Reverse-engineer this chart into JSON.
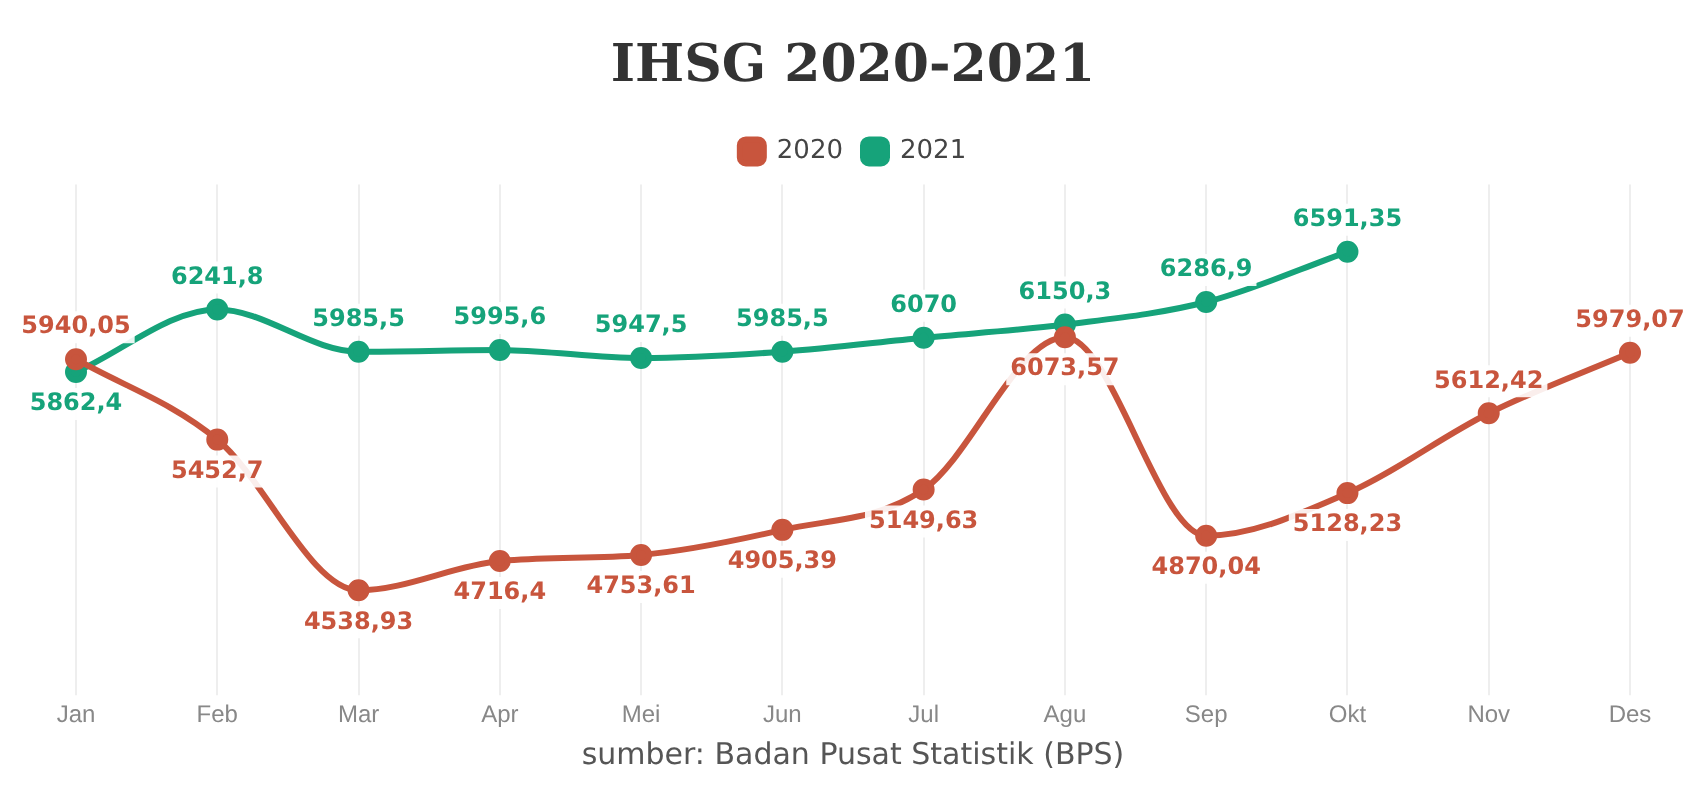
{
  "chart_data": {
    "type": "line",
    "title": "IHSG 2020-2021",
    "categories": [
      "Jan",
      "Feb",
      "Mar",
      "Apr",
      "Mei",
      "Jun",
      "Jul",
      "Agu",
      "Sep",
      "Okt",
      "Nov",
      "Des"
    ],
    "series": [
      {
        "name": "2020",
        "color": "#c8553d",
        "values": [
          5940.05,
          5452.7,
          4538.93,
          4716.4,
          4753.61,
          4905.39,
          5149.63,
          6073.57,
          4870.04,
          5128.23,
          5612.42,
          5979.07
        ],
        "value_labels": [
          "5940,05",
          "5452,7",
          "4538,93",
          "4716,4",
          "4753,61",
          "4905,39",
          "5149,63",
          "6073,57",
          "4870,04",
          "5128,23",
          "5612,42",
          "5979,07"
        ]
      },
      {
        "name": "2021",
        "color": "#16a37a",
        "values": [
          5862.4,
          6241.8,
          5985.5,
          5995.6,
          5947.5,
          5985.5,
          6070,
          6150.3,
          6286.9,
          6591.35,
          null,
          null
        ],
        "value_labels": [
          "5862,4",
          "6241,8",
          "5985,5",
          "5995,6",
          "5947,5",
          "5985,5",
          "6070",
          "6150,3",
          "6286,9",
          "6591,35",
          null,
          null
        ]
      }
    ],
    "grid": "x",
    "legend": "top",
    "marker": "circle",
    "line_style": "solid",
    "annotations": [
      "sumber: Badan Pusat Statistik (BPS)"
    ]
  }
}
